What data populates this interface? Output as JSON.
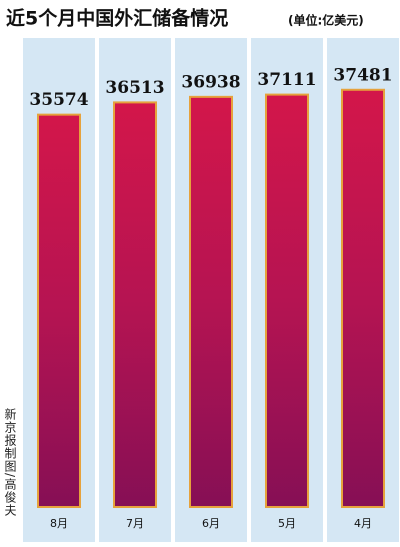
{
  "chart_data": {
    "type": "bar",
    "title": "近5个月中国外汇储备情况",
    "subtitle": "(单位:亿美元)",
    "credit": "新京报制图/高俊夫",
    "categories": [
      "8月",
      "7月",
      "6月",
      "5月",
      "4月"
    ],
    "values": [
      35574,
      36513,
      36938,
      37111,
      37481
    ],
    "ylim": [
      5500,
      38000
    ],
    "color": "#c8174a"
  }
}
